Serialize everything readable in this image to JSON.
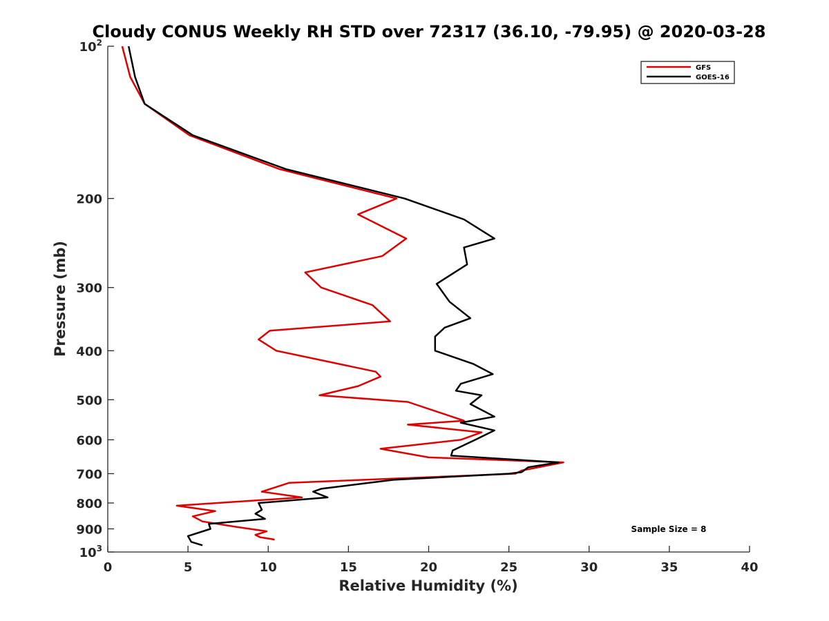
{
  "chart_data": {
    "type": "line",
    "title": "Cloudy CONUS Weekly RH STD over 72317 (36.10, -79.95) @ 2020-03-28",
    "xlabel": "Relative Humidity (%)",
    "ylabel": "Pressure (mb)",
    "xlim": [
      0,
      40
    ],
    "ylim": [
      100,
      1000
    ],
    "yscale": "log",
    "y_reversed": true,
    "x_ticks": [
      0,
      5,
      10,
      15,
      20,
      25,
      30,
      35,
      40
    ],
    "x_tick_labels": [
      "0",
      "5",
      "10",
      "15",
      "20",
      "25",
      "30",
      "35",
      "40"
    ],
    "y_ticks": [
      {
        "value": 100,
        "base": "10",
        "sup": "2"
      },
      {
        "value": 200,
        "label": "200"
      },
      {
        "value": 300,
        "label": "300"
      },
      {
        "value": 400,
        "label": "400"
      },
      {
        "value": 500,
        "label": "500"
      },
      {
        "value": 600,
        "label": "600"
      },
      {
        "value": 700,
        "label": "700"
      },
      {
        "value": 800,
        "label": "800"
      },
      {
        "value": 900,
        "label": "900"
      },
      {
        "value": 1000,
        "base": "10",
        "sup": "3"
      }
    ],
    "grid": false,
    "legend_position": "top-right",
    "annotation": "Sample Size = 8",
    "series": [
      {
        "name": "GFS",
        "color": "#e00000",
        "points": [
          [
            0.9,
            100
          ],
          [
            1.4,
            115
          ],
          [
            2.3,
            130
          ],
          [
            5.1,
            150
          ],
          [
            10.7,
            175
          ],
          [
            18.0,
            200
          ],
          [
            15.6,
            215
          ],
          [
            18.6,
            240
          ],
          [
            17.1,
            260
          ],
          [
            12.3,
            280
          ],
          [
            13.3,
            300
          ],
          [
            16.5,
            325
          ],
          [
            17.6,
            350
          ],
          [
            10.1,
            365
          ],
          [
            9.4,
            380
          ],
          [
            10.5,
            400
          ],
          [
            16.7,
            440
          ],
          [
            17.0,
            450
          ],
          [
            15.6,
            470
          ],
          [
            13.2,
            490
          ],
          [
            18.7,
            505
          ],
          [
            22.2,
            550
          ],
          [
            18.7,
            560
          ],
          [
            23.3,
            580
          ],
          [
            22.0,
            600
          ],
          [
            17.0,
            625
          ],
          [
            20.0,
            650
          ],
          [
            28.4,
            665
          ],
          [
            25.8,
            690
          ],
          [
            25.4,
            700
          ],
          [
            11.3,
            730
          ],
          [
            9.6,
            760
          ],
          [
            12.1,
            780
          ],
          [
            4.3,
            810
          ],
          [
            6.7,
            830
          ],
          [
            5.3,
            850
          ],
          [
            5.9,
            870
          ],
          [
            7.8,
            890
          ],
          [
            9.9,
            910
          ],
          [
            9.2,
            925
          ],
          [
            9.5,
            935
          ],
          [
            10.4,
            945
          ]
        ]
      },
      {
        "name": "GOES-16",
        "color": "#000000",
        "points": [
          [
            1.3,
            100
          ],
          [
            1.7,
            115
          ],
          [
            2.3,
            130
          ],
          [
            5.3,
            150
          ],
          [
            11.1,
            175
          ],
          [
            18.5,
            200
          ],
          [
            22.2,
            220
          ],
          [
            24.1,
            240
          ],
          [
            22.2,
            250
          ],
          [
            22.4,
            270
          ],
          [
            20.5,
            295
          ],
          [
            21.3,
            320
          ],
          [
            22.6,
            345
          ],
          [
            21.0,
            360
          ],
          [
            20.4,
            375
          ],
          [
            20.4,
            400
          ],
          [
            22.8,
            425
          ],
          [
            24.0,
            445
          ],
          [
            22.0,
            465
          ],
          [
            21.7,
            480
          ],
          [
            23.3,
            490
          ],
          [
            22.6,
            510
          ],
          [
            24.1,
            540
          ],
          [
            22.0,
            555
          ],
          [
            24.1,
            575
          ],
          [
            22.9,
            600
          ],
          [
            21.5,
            630
          ],
          [
            21.4,
            645
          ],
          [
            28.1,
            665
          ],
          [
            26.2,
            680
          ],
          [
            25.8,
            695
          ],
          [
            25.0,
            700
          ],
          [
            17.8,
            720
          ],
          [
            13.3,
            750
          ],
          [
            12.8,
            760
          ],
          [
            13.7,
            780
          ],
          [
            9.4,
            800
          ],
          [
            9.6,
            825
          ],
          [
            9.2,
            840
          ],
          [
            9.8,
            860
          ],
          [
            6.3,
            880
          ],
          [
            6.4,
            900
          ],
          [
            5.0,
            930
          ],
          [
            5.2,
            955
          ],
          [
            5.9,
            970
          ]
        ]
      }
    ]
  }
}
